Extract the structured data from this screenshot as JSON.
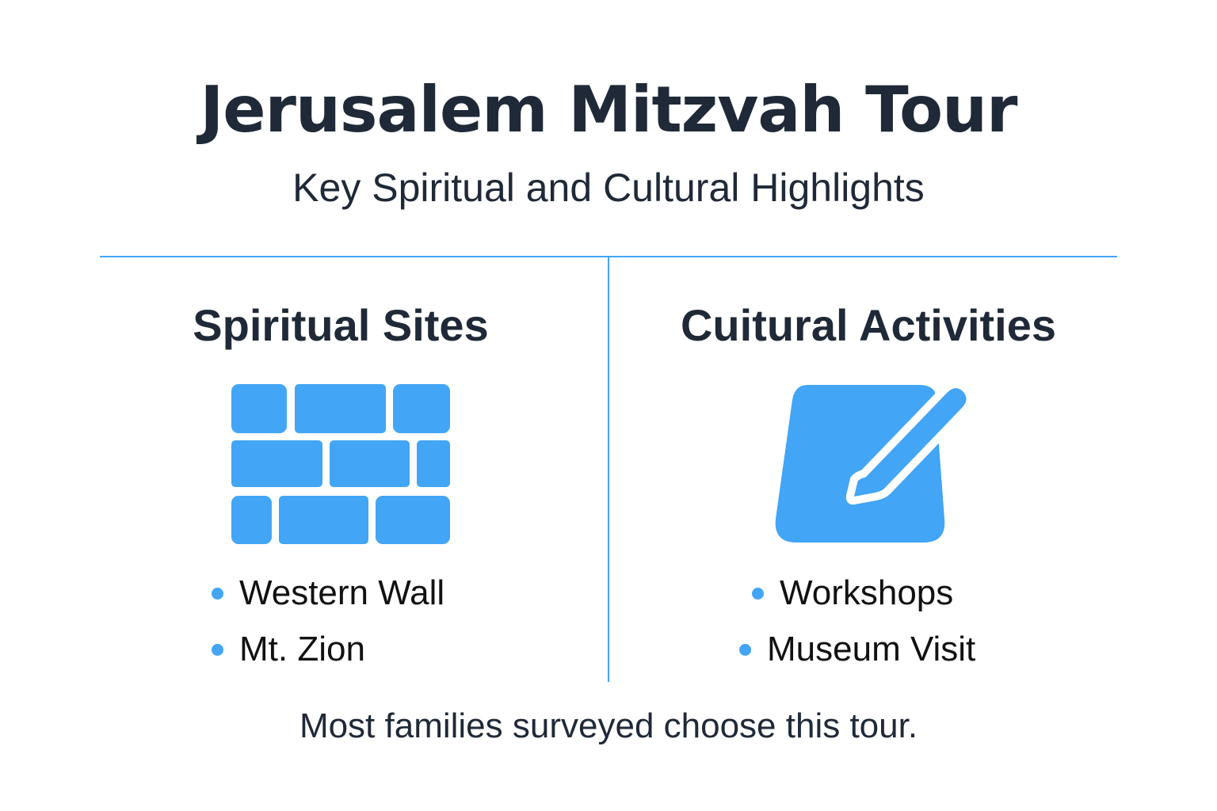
{
  "header": {
    "title": "Jerusalem Mitzvah Tour",
    "subtitle": "Key Spiritual and Cultural Highlights"
  },
  "columns": [
    {
      "heading": "Spiritual Sites",
      "icon": "brick-wall-icon",
      "items": [
        "Western Wall",
        "Mt. Zion"
      ]
    },
    {
      "heading": "Cuitural Activities",
      "icon": "notepad-pencil-icon",
      "items": [
        "Workshops",
        "Museum Visit"
      ]
    }
  ],
  "footer": "Most families surveyed choose this tour.",
  "colors": {
    "accent": "#42a5f5",
    "text": "#1f2937"
  }
}
